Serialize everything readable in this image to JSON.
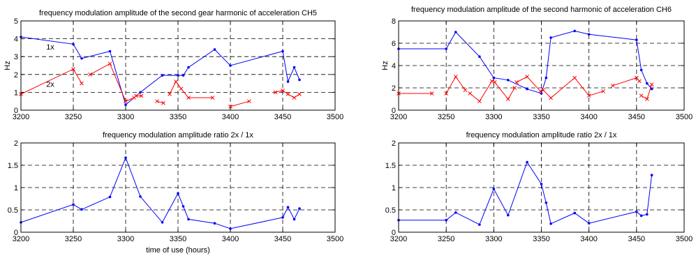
{
  "chart_data": [
    {
      "type": "line",
      "title": "frequency modulation amplitude of the second gear harmonic of acceleration CH5",
      "xlabel": "",
      "ylabel": "Hz",
      "xlim": [
        3200,
        3500
      ],
      "ylim": [
        0,
        5
      ],
      "xticks": [
        3200,
        3250,
        3300,
        3350,
        3400,
        3450,
        3500
      ],
      "yticks": [
        0,
        1,
        2,
        3,
        4,
        5
      ],
      "grid": "dashed",
      "annotations": [
        {
          "text": "1x",
          "x": 3228,
          "y": 3.4
        },
        {
          "text": "2x",
          "x": 3228,
          "y": 1.3
        }
      ],
      "series": [
        {
          "color": "#0000ff",
          "marker": "dot",
          "segments": [
            [
              [
                3200,
                4.1
              ],
              [
                3250,
                3.7
              ],
              [
                3258,
                2.9
              ],
              [
                3285,
                3.3
              ],
              [
                3300,
                0.3
              ],
              [
                3314,
                1.0
              ],
              [
                3335,
                1.95
              ],
              [
                3350,
                1.95
              ],
              [
                3355,
                1.95
              ],
              [
                3360,
                2.4
              ],
              [
                3385,
                3.4
              ],
              [
                3400,
                2.5
              ],
              [
                3450,
                3.3
              ],
              [
                3455,
                1.6
              ],
              [
                3461,
                2.4
              ],
              [
                3466,
                1.7
              ]
            ]
          ]
        },
        {
          "color": "#ff0000",
          "marker": "x",
          "segments": [
            [
              [
                3200,
                0.9
              ],
              [
                3250,
                2.3
              ],
              [
                3258,
                1.5
              ]
            ],
            [
              [
                3266,
                2.0
              ],
              [
                3285,
                2.6
              ],
              [
                3300,
                0.5
              ],
              [
                3308,
                0.7
              ]
            ],
            [
              [
                3310,
                0.8
              ],
              [
                3315,
                0.8
              ]
            ],
            [
              [
                3330,
                0.5
              ],
              [
                3336,
                0.4
              ]
            ],
            [
              [
                3342,
                0.9
              ],
              [
                3348,
                1.6
              ],
              [
                3353,
                1.2
              ],
              [
                3360,
                0.7
              ],
              [
                3383,
                0.7
              ]
            ],
            [
              [
                3400,
                0.2
              ],
              [
                3418,
                0.5
              ]
            ],
            [
              [
                3443,
                1.0
              ],
              [
                3450,
                1.1
              ],
              [
                3455,
                0.9
              ],
              [
                3461,
                0.7
              ],
              [
                3466,
                0.9
              ]
            ]
          ]
        }
      ]
    },
    {
      "type": "line",
      "title": "frequency modulation amplitude of the second harmonic of acceleration CH6",
      "xlabel": "",
      "ylabel": "Hz",
      "xlim": [
        3200,
        3500
      ],
      "ylim": [
        0,
        8
      ],
      "xticks": [
        3200,
        3250,
        3300,
        3350,
        3400,
        3450,
        3500
      ],
      "yticks": [
        0,
        2,
        4,
        6,
        8
      ],
      "grid": "dashed",
      "annotations": [],
      "series": [
        {
          "color": "#0000ff",
          "marker": "dot",
          "segments": [
            [
              [
                3200,
                5.5
              ],
              [
                3250,
                5.5
              ],
              [
                3260,
                7.0
              ],
              [
                3285,
                4.8
              ],
              [
                3300,
                2.9
              ],
              [
                3315,
                2.7
              ],
              [
                3335,
                1.9
              ],
              [
                3350,
                1.5
              ],
              [
                3355,
                2.9
              ],
              [
                3360,
                6.5
              ],
              [
                3385,
                7.1
              ],
              [
                3400,
                6.8
              ],
              [
                3450,
                6.3
              ],
              [
                3455,
                3.6
              ],
              [
                3461,
                2.4
              ],
              [
                3466,
                1.9
              ]
            ]
          ]
        },
        {
          "color": "#ff0000",
          "marker": "x",
          "segments": [
            [
              [
                3200,
                1.5
              ],
              [
                3235,
                1.5
              ]
            ],
            [
              [
                3250,
                1.5
              ],
              [
                3260,
                3.0
              ],
              [
                3270,
                1.8
              ]
            ],
            [
              [
                3275,
                1.5
              ],
              [
                3285,
                0.8
              ],
              [
                3298,
                2.6
              ]
            ],
            [
              [
                3301,
                2.5
              ],
              [
                3315,
                1.0
              ],
              [
                3322,
                2.0
              ]
            ],
            [
              [
                3324,
                2.5
              ],
              [
                3335,
                3.0
              ],
              [
                3349,
                1.7
              ]
            ],
            [
              [
                3352,
                1.8
              ],
              [
                3360,
                1.1
              ],
              [
                3385,
                2.9
              ],
              [
                3400,
                1.3
              ],
              [
                3415,
                1.7
              ]
            ],
            [
              [
                3425,
                2.2
              ],
              [
                3450,
                2.9
              ],
              [
                3453,
                2.6
              ]
            ],
            [
              [
                3455,
                1.3
              ],
              [
                3461,
                1.0
              ],
              [
                3466,
                2.3
              ]
            ]
          ]
        }
      ]
    },
    {
      "type": "line",
      "title": "frequency modulation amplitude ratio 2x / 1x",
      "xlabel": "time of use (hours)",
      "ylabel": "",
      "xlim": [
        3200,
        3500
      ],
      "ylim": [
        0,
        2
      ],
      "xticks": [
        3200,
        3250,
        3300,
        3350,
        3400,
        3450,
        3500
      ],
      "yticks": [
        0,
        0.5,
        1,
        1.5,
        2
      ],
      "grid": "dashed",
      "annotations": [],
      "series": [
        {
          "color": "#0000ff",
          "marker": "dot",
          "segments": [
            [
              [
                3200,
                0.22
              ],
              [
                3250,
                0.62
              ],
              [
                3258,
                0.51
              ],
              [
                3285,
                0.79
              ],
              [
                3300,
                1.67
              ],
              [
                3314,
                0.8
              ],
              [
                3335,
                0.22
              ],
              [
                3350,
                0.87
              ],
              [
                3355,
                0.58
              ],
              [
                3360,
                0.29
              ],
              [
                3385,
                0.2
              ],
              [
                3400,
                0.08
              ],
              [
                3450,
                0.33
              ],
              [
                3455,
                0.56
              ],
              [
                3461,
                0.29
              ],
              [
                3466,
                0.53
              ]
            ]
          ]
        }
      ]
    },
    {
      "type": "line",
      "title": "frequency modulation amplitude ratio 2x / 1x",
      "xlabel": "",
      "ylabel": "",
      "xlim": [
        3200,
        3500
      ],
      "ylim": [
        0,
        2
      ],
      "xticks": [
        3200,
        3250,
        3300,
        3350,
        3400,
        3450,
        3500
      ],
      "yticks": [
        0,
        0.5,
        1,
        1.5,
        2
      ],
      "grid": "dashed",
      "annotations": [],
      "series": [
        {
          "color": "#0000ff",
          "marker": "dot",
          "segments": [
            [
              [
                3200,
                0.27
              ],
              [
                3250,
                0.27
              ],
              [
                3260,
                0.44
              ],
              [
                3285,
                0.17
              ],
              [
                3300,
                0.97
              ],
              [
                3315,
                0.38
              ],
              [
                3335,
                1.57
              ],
              [
                3350,
                1.08
              ],
              [
                3355,
                0.66
              ],
              [
                3360,
                0.19
              ],
              [
                3385,
                0.43
              ],
              [
                3400,
                0.2
              ],
              [
                3450,
                0.46
              ],
              [
                3455,
                0.37
              ],
              [
                3461,
                0.4
              ],
              [
                3466,
                1.28
              ]
            ]
          ]
        }
      ]
    }
  ],
  "axis_labels_hidden_note": ""
}
